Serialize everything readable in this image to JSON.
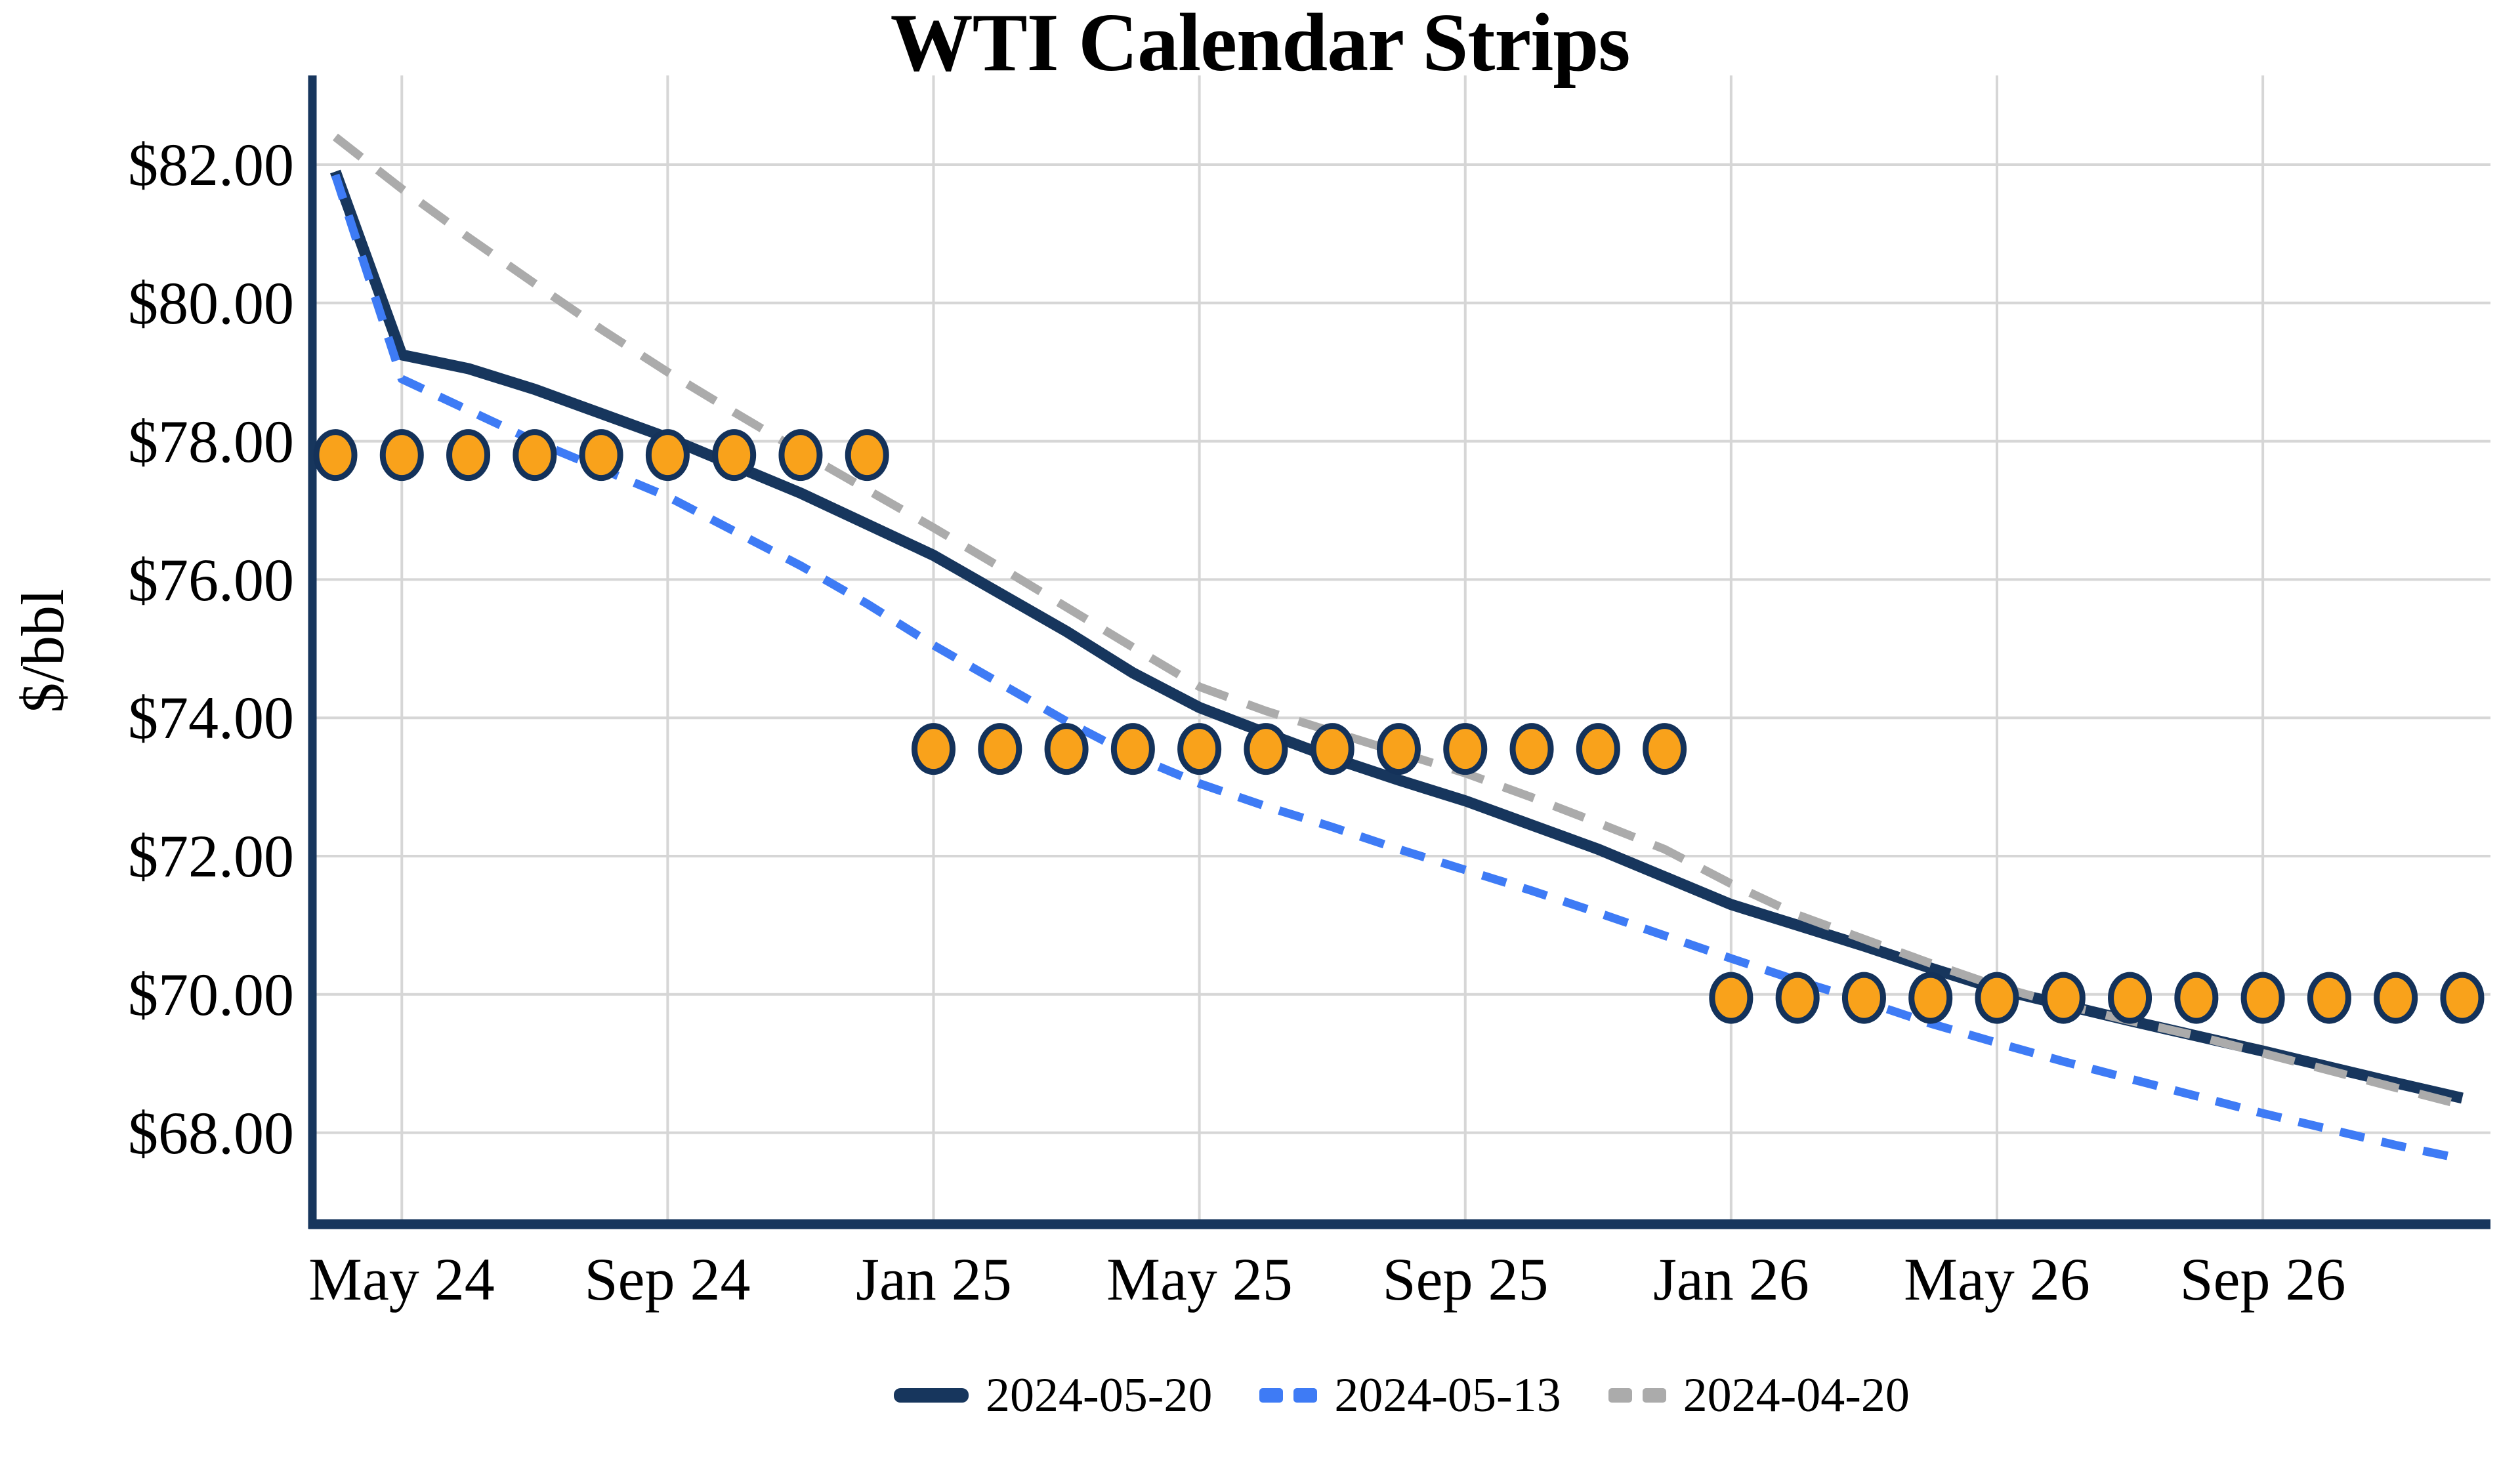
{
  "chart_data": {
    "type": "line",
    "title": "WTI Calendar Strips",
    "ylabel": "$/bbl",
    "xlabel": "",
    "grid": true,
    "legend_position": "bottom-center",
    "ylim": [
      66.6,
      83.3
    ],
    "x": [
      "Apr 24",
      "May 24",
      "Jun 24",
      "Jul 24",
      "Aug 24",
      "Sep 24",
      "Oct 24",
      "Nov 24",
      "Dec 24",
      "Jan 25",
      "Feb 25",
      "Mar 25",
      "Apr 25",
      "May 25",
      "Jun 25",
      "Jul 25",
      "Aug 25",
      "Sep 25",
      "Oct 25",
      "Nov 25",
      "Dec 25",
      "Jan 26",
      "Feb 26",
      "Mar 26",
      "Apr 26",
      "May 26",
      "Jun 26",
      "Jul 26",
      "Aug 26",
      "Sep 26",
      "Oct 26",
      "Nov 26",
      "Dec 26"
    ],
    "x_ticks": [
      {
        "index": 1,
        "label": "May 24"
      },
      {
        "index": 5,
        "label": "Sep 24"
      },
      {
        "index": 9,
        "label": "Jan 25"
      },
      {
        "index": 13,
        "label": "May 25"
      },
      {
        "index": 17,
        "label": "Sep 25"
      },
      {
        "index": 21,
        "label": "Jan 26"
      },
      {
        "index": 25,
        "label": "May 26"
      },
      {
        "index": 29,
        "label": "Sep 26"
      }
    ],
    "y_ticks": [
      {
        "value": 82,
        "label": "$82.00"
      },
      {
        "value": 80,
        "label": "$80.00"
      },
      {
        "value": 78,
        "label": "$78.00"
      },
      {
        "value": 76,
        "label": "$76.00"
      },
      {
        "value": 74,
        "label": "$74.00"
      },
      {
        "value": 72,
        "label": "$72.00"
      },
      {
        "value": 70,
        "label": "$70.00"
      },
      {
        "value": 68,
        "label": "$68.00"
      }
    ],
    "series": [
      {
        "name": "2024-05-20",
        "style": "solid",
        "color": "#17365D",
        "values": [
          81.9,
          79.25,
          79.05,
          78.75,
          78.4,
          78.05,
          77.65,
          77.25,
          76.8,
          76.35,
          75.8,
          75.25,
          74.65,
          74.15,
          73.78,
          73.42,
          73.1,
          72.8,
          72.45,
          72.1,
          71.7,
          71.3,
          71.0,
          70.7,
          70.38,
          70.08,
          69.85,
          69.62,
          69.4,
          69.18,
          68.95,
          68.72,
          68.5
        ]
      },
      {
        "name": "2024-05-13",
        "style": "dashed",
        "color": "#3E7BF5",
        "values": [
          81.85,
          78.9,
          78.45,
          78.0,
          77.6,
          77.2,
          76.7,
          76.2,
          75.65,
          75.05,
          74.5,
          73.95,
          73.45,
          73.05,
          72.72,
          72.42,
          72.1,
          71.8,
          71.5,
          71.18,
          70.85,
          70.52,
          70.2,
          69.9,
          69.58,
          69.3,
          69.03,
          68.78,
          68.53,
          68.28,
          68.05,
          67.82,
          67.62
        ]
      },
      {
        "name": "2024-04-20",
        "style": "dashed",
        "color": "#ABABAB",
        "values": [
          82.4,
          81.65,
          80.95,
          80.28,
          79.62,
          79.0,
          78.42,
          77.85,
          77.3,
          76.75,
          76.18,
          75.6,
          75.02,
          74.45,
          74.1,
          73.8,
          73.5,
          73.2,
          72.85,
          72.48,
          72.1,
          71.6,
          71.15,
          70.8,
          70.45,
          70.12,
          69.85,
          69.62,
          69.4,
          69.15,
          68.9,
          68.65,
          68.4
        ]
      }
    ],
    "dot_strips": [
      {
        "value": 77.8,
        "from_index": 0,
        "to_index": 8,
        "start_month": "Apr 24",
        "end_month": "Dec 24"
      },
      {
        "value": 73.55,
        "from_index": 9,
        "to_index": 20,
        "start_month": "Jan 25",
        "end_month": "Dec 25"
      },
      {
        "value": 69.95,
        "from_index": 21,
        "to_index": 32,
        "start_month": "Jan 26",
        "end_month": "Dec 26"
      }
    ],
    "colors": {
      "grid": "#D6D6D6",
      "spine": "#17365D",
      "dot_fill": "#F9A21B",
      "dot_edge": "#14325A",
      "background": "#FFFFFF"
    }
  }
}
